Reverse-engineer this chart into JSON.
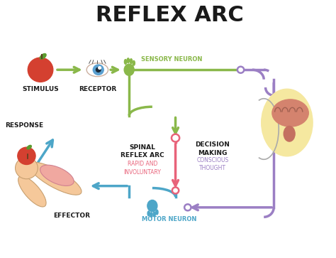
{
  "title": "REFLEX ARC",
  "title_fontsize": 22,
  "title_fontweight": "bold",
  "title_color": "#1a1a1a",
  "bg_color": "#ffffff",
  "green_color": "#8ab84a",
  "pink_color": "#e8637a",
  "blue_color": "#4da6c8",
  "purple_color": "#9b7fc4",
  "labels": {
    "stimulus": "STIMULUS",
    "receptor": "RECEPTOR",
    "sensory_neuron": "SENSORY NEURON",
    "spinal_reflex": "SPINAL\nREFLEX ARC",
    "spinal_sub": "RAPID AND\nINVOLUNTARY",
    "decision_making": "DECISION\nMAKING",
    "conscious_thought": "CONSCIOUS\nTHOUGHT",
    "response": "RESPONSE",
    "effector": "EFFECTOR",
    "motor_neuron": "MOTOR NEURON"
  },
  "label_fontsize": 6.5,
  "sub_fontsize": 5.5
}
